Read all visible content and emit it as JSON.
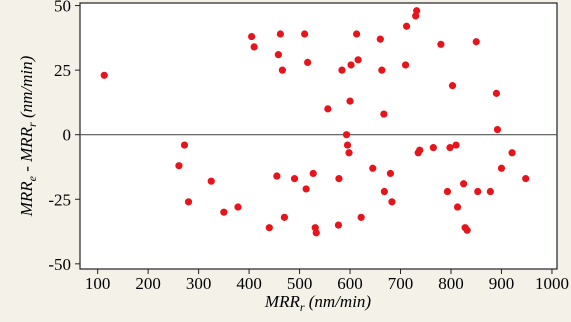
{
  "chart_data": {
    "type": "scatter",
    "xlabel": "MRR_r (nm/min)",
    "ylabel": "MRR_e - MRR_r (nm/min)",
    "xlim": [
      65,
      1010
    ],
    "ylim": [
      -52,
      51
    ],
    "x_ticks": [
      100,
      200,
      300,
      400,
      500,
      600,
      700,
      800,
      900,
      1000
    ],
    "y_ticks": [
      -50,
      -25,
      0,
      25,
      50
    ],
    "reference_line_y": 0,
    "grid": false,
    "marker_color": "#e8141c",
    "series": [
      {
        "x": [
          113,
          261,
          272,
          280,
          325,
          350,
          378,
          405,
          410,
          440,
          455,
          458,
          462,
          466,
          470,
          490,
          510,
          513,
          516,
          527,
          531,
          533,
          556,
          577,
          578,
          584,
          593,
          595,
          598,
          600,
          602,
          613,
          616,
          622,
          645,
          660,
          663,
          667,
          668,
          680,
          683,
          710,
          712,
          730,
          732,
          735,
          738,
          765,
          780,
          793,
          798,
          803,
          810,
          813,
          825,
          828,
          832,
          850,
          853,
          878,
          890,
          892,
          900,
          921,
          948
        ],
        "y": [
          23,
          -12,
          -4,
          -26,
          -18,
          -30,
          -28,
          38,
          34,
          -36,
          -16,
          31,
          39,
          25,
          -32,
          -17,
          39,
          -21,
          28,
          -15,
          -36,
          -38,
          10,
          -35,
          -17,
          25,
          0,
          -4,
          -7,
          13,
          27,
          39,
          29,
          -32,
          -13,
          37,
          25,
          8,
          -22,
          -15,
          -26,
          27,
          42,
          46,
          48,
          -7,
          -6,
          -5,
          35,
          -22,
          -5,
          19,
          -4,
          -28,
          -19,
          -36,
          -37,
          36,
          -22,
          -22,
          16,
          2,
          -13,
          -7,
          -17
        ]
      }
    ]
  }
}
